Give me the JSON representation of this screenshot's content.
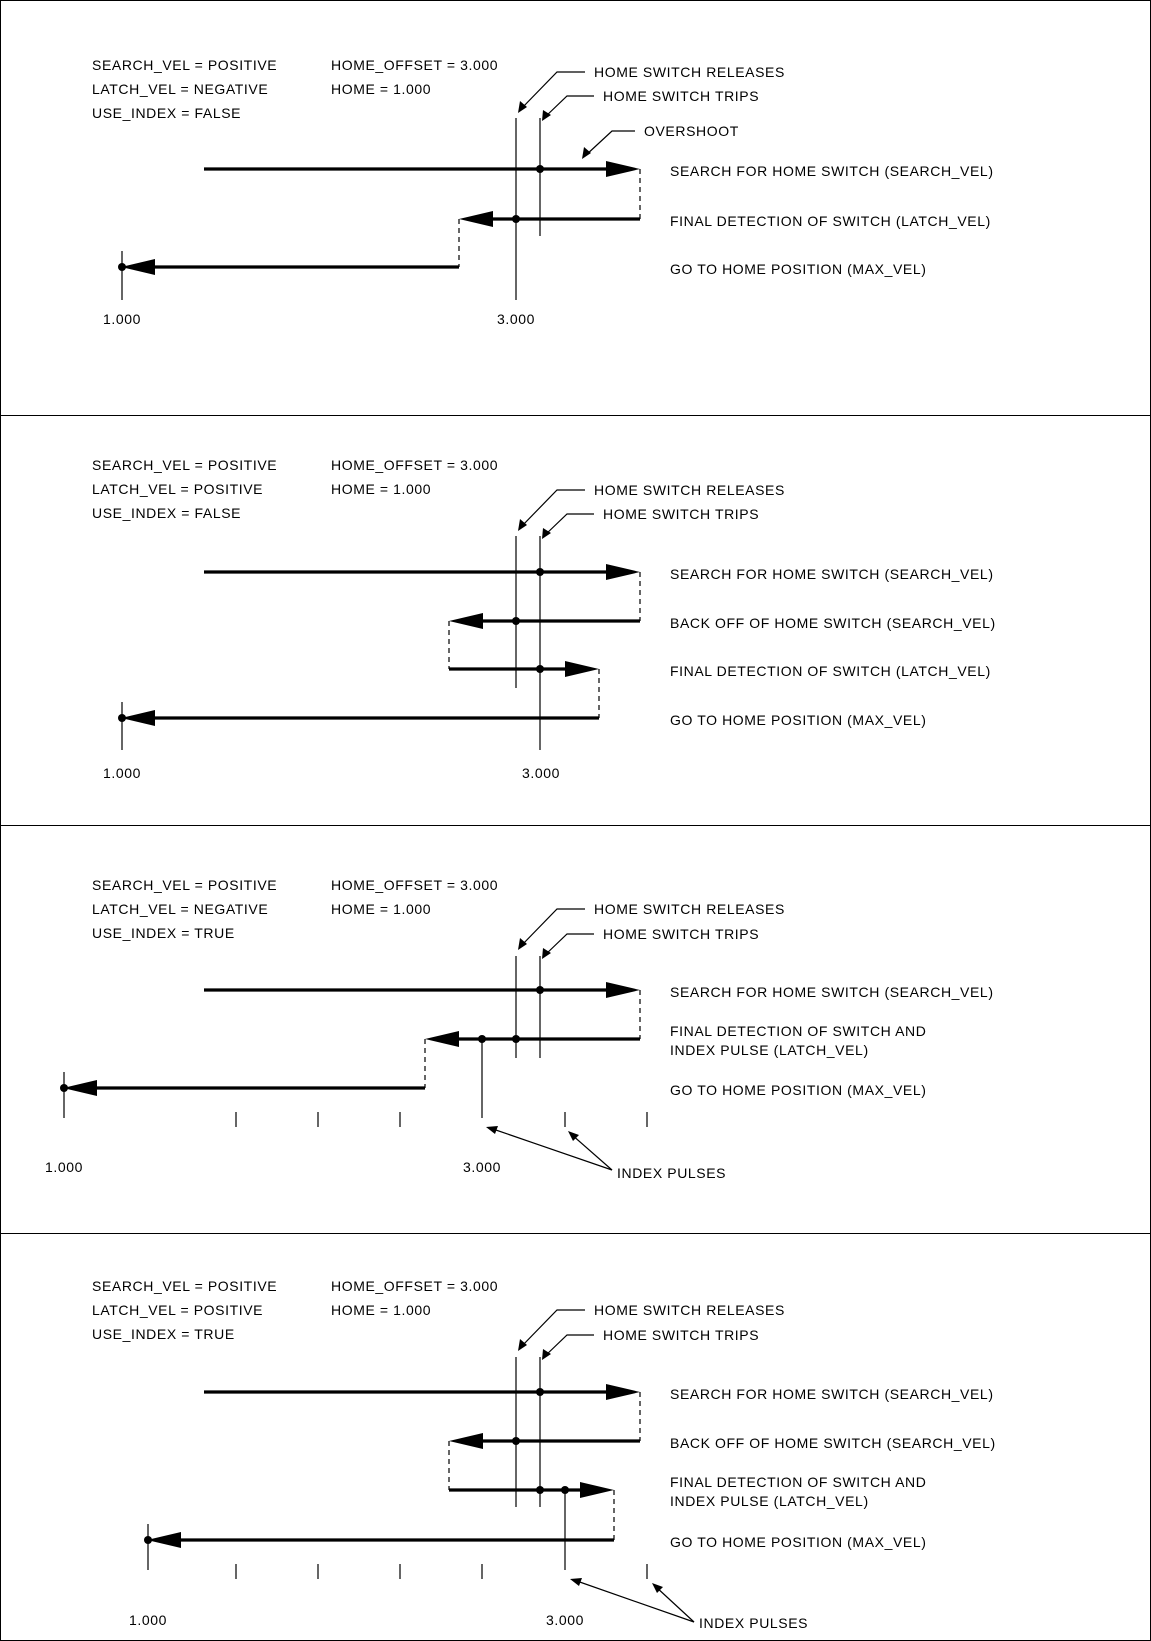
{
  "panels": [
    {
      "params_left": [
        "SEARCH_VEL = POSITIVE",
        "LATCH_VEL = NEGATIVE",
        "USE_INDEX = FALSE"
      ],
      "params_right": [
        "HOME_OFFSET = 3.000",
        "HOME = 1.000"
      ],
      "callouts": {
        "releases": "HOME SWITCH RELEASES",
        "trips": "HOME SWITCH TRIPS",
        "overshoot": "OVERSHOOT"
      },
      "step_labels": [
        "SEARCH FOR HOME SWITCH (SEARCH_VEL)",
        "FINAL DETECTION OF SWITCH (LATCH_VEL)",
        "GO TO HOME POSITION (MAX_VEL)"
      ],
      "position_labels": {
        "home": "1.000",
        "offset": "3.000"
      }
    },
    {
      "params_left": [
        "SEARCH_VEL = POSITIVE",
        "LATCH_VEL = POSITIVE",
        "USE_INDEX = FALSE"
      ],
      "params_right": [
        "HOME_OFFSET = 3.000",
        "HOME = 1.000"
      ],
      "callouts": {
        "releases": "HOME SWITCH RELEASES",
        "trips": "HOME SWITCH TRIPS"
      },
      "step_labels": [
        "SEARCH FOR HOME SWITCH (SEARCH_VEL)",
        "BACK OFF OF HOME SWITCH (SEARCH_VEL)",
        "FINAL DETECTION OF SWITCH (LATCH_VEL)",
        "GO TO HOME POSITION (MAX_VEL)"
      ],
      "position_labels": {
        "home": "1.000",
        "offset": "3.000"
      }
    },
    {
      "params_left": [
        "SEARCH_VEL = POSITIVE",
        "LATCH_VEL = NEGATIVE",
        "USE_INDEX = TRUE"
      ],
      "params_right": [
        "HOME_OFFSET = 3.000",
        "HOME = 1.000"
      ],
      "callouts": {
        "releases": "HOME SWITCH RELEASES",
        "trips": "HOME SWITCH TRIPS",
        "index_pulses": "INDEX PULSES"
      },
      "step_labels": [
        "SEARCH FOR HOME SWITCH (SEARCH_VEL)",
        "FINAL DETECTION OF SWITCH AND",
        "INDEX PULSE (LATCH_VEL)",
        "GO TO HOME POSITION (MAX_VEL)"
      ],
      "position_labels": {
        "home": "1.000",
        "offset": "3.000"
      }
    },
    {
      "params_left": [
        "SEARCH_VEL = POSITIVE",
        "LATCH_VEL = POSITIVE",
        "USE_INDEX = TRUE"
      ],
      "params_right": [
        "HOME_OFFSET = 3.000",
        "HOME = 1.000"
      ],
      "callouts": {
        "releases": "HOME SWITCH RELEASES",
        "trips": "HOME SWITCH TRIPS",
        "index_pulses": "INDEX PULSES"
      },
      "step_labels": [
        "SEARCH FOR HOME SWITCH (SEARCH_VEL)",
        "BACK OFF OF HOME SWITCH (SEARCH_VEL)",
        "FINAL DETECTION OF SWITCH AND",
        "INDEX PULSE (LATCH_VEL)",
        "GO TO HOME POSITION (MAX_VEL)"
      ],
      "position_labels": {
        "home": "1.000",
        "offset": "3.000"
      }
    }
  ]
}
